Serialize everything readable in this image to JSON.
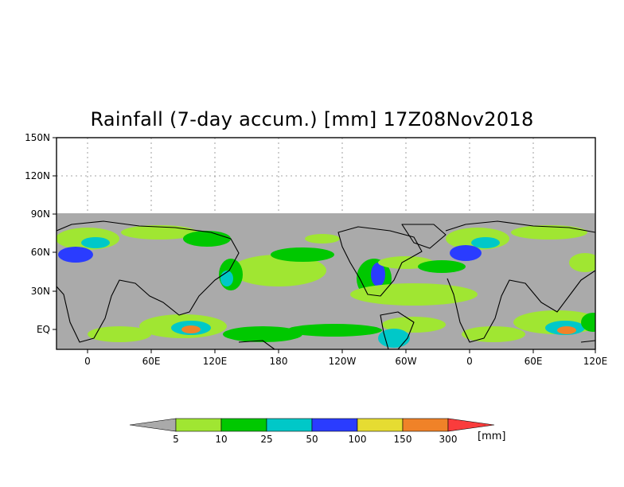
{
  "title": "Rainfall (7-day accum.) [mm] 17Z08Nov2018",
  "map": {
    "lat_labels": [
      "150N",
      "120N",
      "90N",
      "60N",
      "30N",
      "EQ"
    ],
    "lon_labels": [
      "0",
      "60E",
      "120E",
      "180",
      "120W",
      "60W",
      "0",
      "60E",
      "120E"
    ],
    "no_rain_color": "#aaaaaa",
    "outline_color": "#000000"
  },
  "legend": {
    "boundaries": [
      "5",
      "10",
      "25",
      "50",
      "100",
      "150",
      "300"
    ],
    "colors": [
      "#aaaaaa",
      "#a0e632",
      "#00c800",
      "#00c8c8",
      "#2a3cff",
      "#e6dc32",
      "#f08228",
      "#fa3c3c"
    ],
    "unit": "[mm]"
  }
}
